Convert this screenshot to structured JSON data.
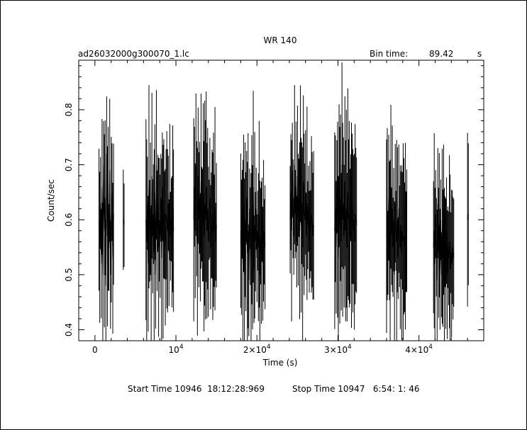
{
  "chart_data": {
    "type": "line",
    "title": "WR 140",
    "file_label": "ad26032000g300070_1.lc",
    "bin_time_label": "Bin time:",
    "bin_time_value": "89.42",
    "bin_time_unit": "s",
    "xlabel": "Time (s)",
    "ylabel": "Count/sec",
    "xlim": [
      -2000,
      48000
    ],
    "ylim": [
      0.38,
      0.89
    ],
    "x_ticks": [
      {
        "value": 0,
        "label": "0"
      },
      {
        "value": 10000,
        "label": "10",
        "sup": "4"
      },
      {
        "value": 20000,
        "label": "2×10",
        "sup": "4"
      },
      {
        "value": 30000,
        "label": "3×10",
        "sup": "4"
      },
      {
        "value": 40000,
        "label": "4×10",
        "sup": "4"
      }
    ],
    "y_ticks": [
      {
        "value": 0.4,
        "label": "0.4"
      },
      {
        "value": 0.5,
        "label": "0.5"
      },
      {
        "value": 0.6,
        "label": "0.6"
      },
      {
        "value": 0.7,
        "label": "0.7"
      },
      {
        "value": 0.8,
        "label": "0.8"
      }
    ],
    "grid": false,
    "footer_start": "Start Time 10946  18:12:28:969",
    "footer_stop": "Stop Time 10947   6:54: 1: 46",
    "segments": [
      {
        "t0": 500,
        "t1": 2300,
        "y": [
          0.6,
          0.55,
          0.63,
          0.52,
          0.66,
          0.5,
          0.7,
          0.58,
          0.64,
          0.48,
          0.72,
          0.57,
          0.62,
          0.55,
          0.69,
          0.5,
          0.6,
          0.65,
          0.53,
          0.61
        ]
      },
      {
        "t0": 3500,
        "t1": 3600,
        "y": [
          0.6,
          0.59
        ]
      },
      {
        "t0": 6300,
        "t1": 9700,
        "y": [
          0.6,
          0.56,
          0.63,
          0.52,
          0.66,
          0.58,
          0.62,
          0.49,
          0.68,
          0.57,
          0.61,
          0.54,
          0.65,
          0.5,
          0.7,
          0.58,
          0.63,
          0.55,
          0.6,
          0.57,
          0.64,
          0.53,
          0.66,
          0.56,
          0.62,
          0.59,
          0.55,
          0.61,
          0.6,
          0.58,
          0.63,
          0.54,
          0.65,
          0.57,
          0.6,
          0.56,
          0.62,
          0.58
        ]
      },
      {
        "t0": 12200,
        "t1": 15000,
        "y": [
          0.6,
          0.66,
          0.58,
          0.7,
          0.62,
          0.56,
          0.68,
          0.6,
          0.64,
          0.55,
          0.67,
          0.61,
          0.59,
          0.65,
          0.57,
          0.63,
          0.6,
          0.66,
          0.58,
          0.62,
          0.56,
          0.6,
          0.64,
          0.55,
          0.59,
          0.61,
          0.57,
          0.6,
          0.58,
          0.62,
          0.56,
          0.59
        ]
      },
      {
        "t0": 18000,
        "t1": 21000,
        "y": [
          0.58,
          0.55,
          0.61,
          0.52,
          0.63,
          0.5,
          0.6,
          0.56,
          0.64,
          0.54,
          0.58,
          0.49,
          0.62,
          0.57,
          0.53,
          0.6,
          0.55,
          0.66,
          0.51,
          0.59,
          0.56,
          0.62,
          0.53,
          0.58,
          0.55,
          0.61,
          0.5,
          0.57,
          0.54,
          0.6,
          0.52,
          0.58,
          0.56,
          0.55
        ]
      },
      {
        "t0": 24100,
        "t1": 27000,
        "y": [
          0.6,
          0.65,
          0.58,
          0.69,
          0.62,
          0.57,
          0.7,
          0.61,
          0.66,
          0.56,
          0.68,
          0.6,
          0.64,
          0.58,
          0.72,
          0.59,
          0.63,
          0.55,
          0.67,
          0.61,
          0.6,
          0.65,
          0.57,
          0.63,
          0.59,
          0.62,
          0.56,
          0.6,
          0.58,
          0.61,
          0.6,
          0.57,
          0.59
        ]
      },
      {
        "t0": 29600,
        "t1": 32300,
        "y": [
          0.58,
          0.62,
          0.55,
          0.66,
          0.6,
          0.53,
          0.68,
          0.59,
          0.64,
          0.56,
          0.7,
          0.6,
          0.63,
          0.57,
          0.67,
          0.58,
          0.62,
          0.55,
          0.65,
          0.6,
          0.61,
          0.57,
          0.64,
          0.59,
          0.62,
          0.58,
          0.6,
          0.56,
          0.61,
          0.6,
          0.59
        ]
      },
      {
        "t0": 36000,
        "t1": 38500,
        "y": [
          0.57,
          0.61,
          0.54,
          0.64,
          0.58,
          0.52,
          0.66,
          0.57,
          0.62,
          0.55,
          0.6,
          0.5,
          0.63,
          0.58,
          0.56,
          0.6,
          0.53,
          0.62,
          0.57,
          0.55,
          0.59,
          0.54,
          0.58,
          0.56,
          0.57,
          0.55,
          0.57,
          0.56,
          0.58
        ]
      },
      {
        "t0": 41800,
        "t1": 44300,
        "y": [
          0.55,
          0.58,
          0.52,
          0.61,
          0.55,
          0.49,
          0.63,
          0.54,
          0.59,
          0.51,
          0.6,
          0.5,
          0.57,
          0.53,
          0.6,
          0.48,
          0.56,
          0.52,
          0.58,
          0.5,
          0.55,
          0.53,
          0.56,
          0.51,
          0.54,
          0.52,
          0.55,
          0.53,
          0.54
        ]
      },
      {
        "t0": 46000,
        "t1": 46100,
        "y": [
          0.6,
          0.61
        ]
      }
    ],
    "colors": {
      "line": "#000000",
      "background": "#ffffff"
    }
  }
}
